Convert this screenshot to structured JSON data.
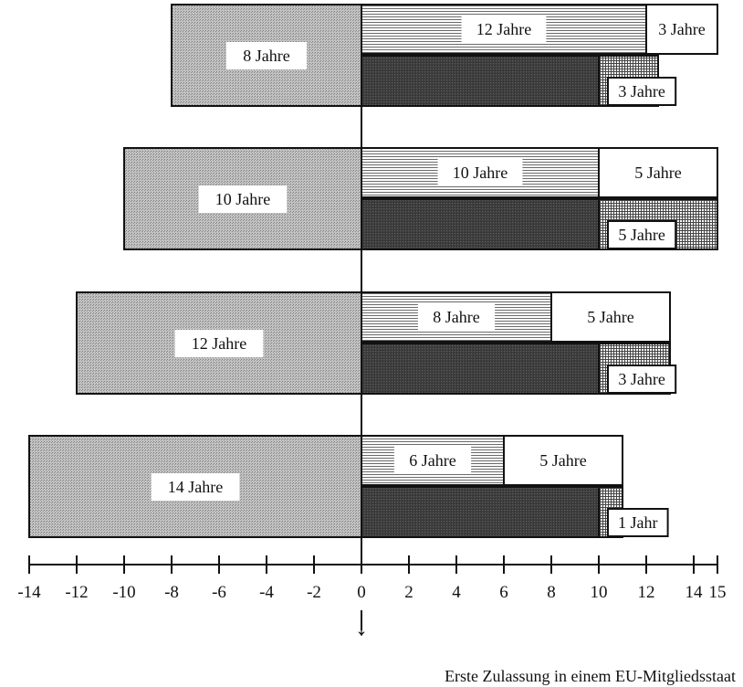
{
  "chart_data": {
    "type": "bar",
    "title": "",
    "xlabel": "Erste Zulassung in einem EU-Mitgliedsstaat",
    "ylabel": "",
    "xlim": [
      -14,
      15
    ],
    "xticks": [
      -14,
      -12,
      -10,
      -8,
      -6,
      -4,
      -2,
      0,
      2,
      4,
      6,
      8,
      10,
      12,
      14,
      15
    ],
    "groups": [
      {
        "left": {
          "value": -8,
          "label": "8 Jahre"
        },
        "top": [
          {
            "value": 12,
            "label": "12 Jahre"
          },
          {
            "value": 3,
            "label": "3 Jahre"
          }
        ],
        "bottom": [
          {
            "value": 10
          },
          {
            "value": 2.5,
            "label": "3 Jahre"
          }
        ]
      },
      {
        "left": {
          "value": -10,
          "label": "10 Jahre"
        },
        "top": [
          {
            "value": 10,
            "label": "10 Jahre"
          },
          {
            "value": 5,
            "label": "5 Jahre"
          }
        ],
        "bottom": [
          {
            "value": 10
          },
          {
            "value": 5,
            "label": "5 Jahre"
          }
        ]
      },
      {
        "left": {
          "value": -12,
          "label": "12 Jahre"
        },
        "top": [
          {
            "value": 8,
            "label": "8 Jahre"
          },
          {
            "value": 5,
            "label": "5 Jahre"
          }
        ],
        "bottom": [
          {
            "value": 10
          },
          {
            "value": 3,
            "label": "3 Jahre"
          }
        ]
      },
      {
        "left": {
          "value": -14,
          "label": "14 Jahre"
        },
        "top": [
          {
            "value": 6,
            "label": "6 Jahre"
          },
          {
            "value": 5,
            "label": "5 Jahre"
          }
        ],
        "bottom": [
          {
            "value": 10
          },
          {
            "value": 1,
            "label": "1 Jahr"
          }
        ]
      }
    ],
    "arrow_glyph": "↓"
  }
}
